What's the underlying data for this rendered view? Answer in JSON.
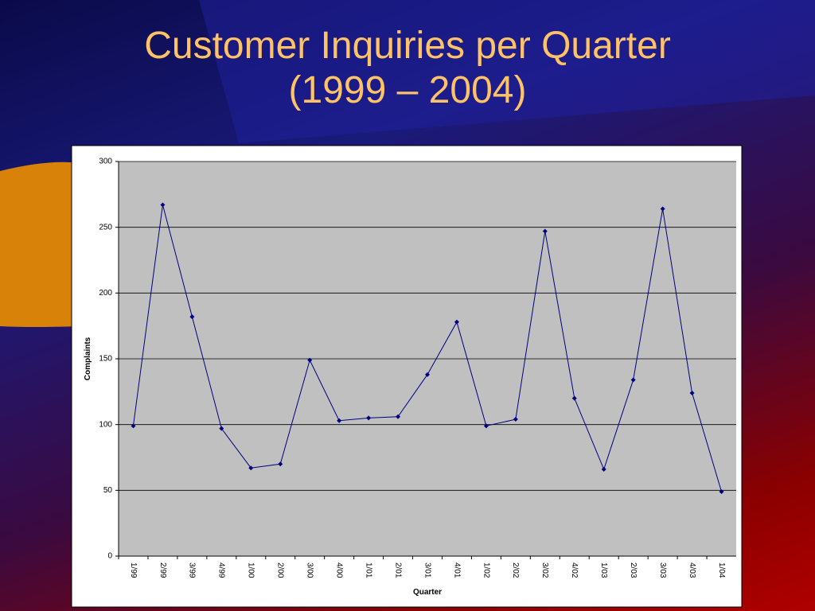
{
  "chart_data": {
    "type": "line",
    "title": [
      "Customer Inquiries per Quarter",
      "(1999 – 2004)"
    ],
    "x_label": "Quarter",
    "y_label": "Complaints",
    "categories": [
      "1/99",
      "2/99",
      "3/99",
      "4/99",
      "1/00",
      "2/00",
      "3/00",
      "4/00",
      "1/01",
      "2/01",
      "3/01",
      "4/01",
      "1/02",
      "2/02",
      "3/02",
      "4/02",
      "1/03",
      "2/03",
      "3/03",
      "4/03",
      "1/04"
    ],
    "series": [
      {
        "name": "Complaints",
        "color": "#000080",
        "values": [
          99,
          267,
          182,
          97,
          67,
          70,
          149,
          103,
          105,
          106,
          138,
          178,
          99,
          104,
          247,
          120,
          66,
          134,
          264,
          124,
          49
        ]
      }
    ],
    "ylim": [
      0,
      300
    ],
    "yticks": [
      0,
      50,
      100,
      150,
      200,
      250,
      300
    ],
    "grid": true
  }
}
